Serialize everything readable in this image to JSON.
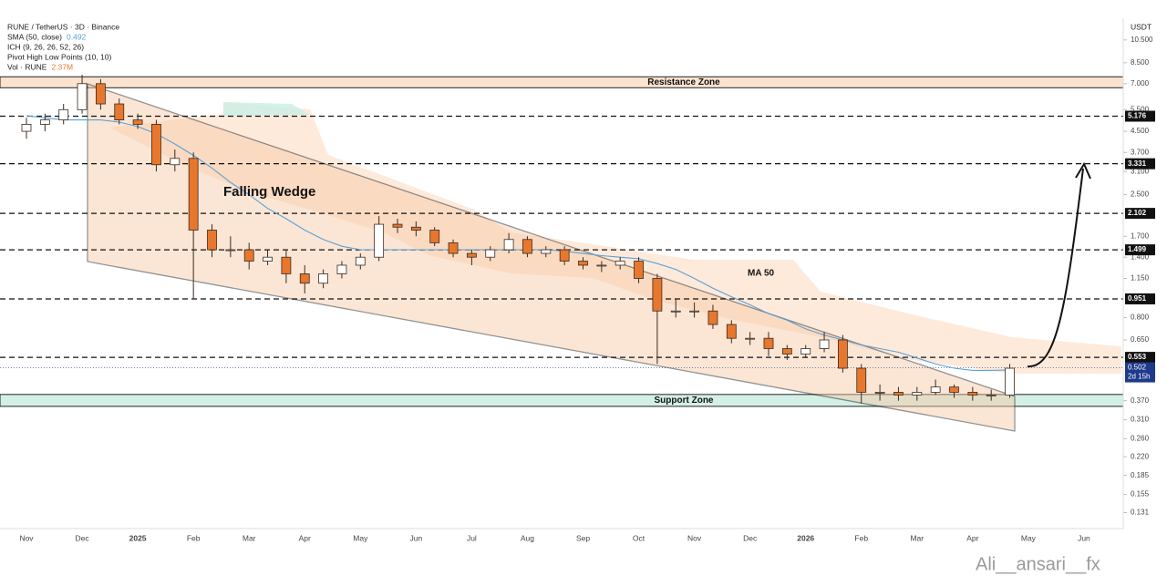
{
  "header": {
    "symbol": "RUNE / TetherUS · 3D · Binance",
    "legend": [
      {
        "label": "SMA (50, close)",
        "value": 0.492,
        "color": "#5aa0d8"
      },
      {
        "label": "ICH (9, 26, 26, 52, 26)"
      },
      {
        "label": "Pivot High Low Points (10, 10)"
      },
      {
        "label": "Vol · RUNE",
        "value_label": "2.37M",
        "color": "#e8772e"
      }
    ],
    "currency": "USDT",
    "watermark": "Ali__ansari__fx"
  },
  "chart_data": {
    "type": "candlestick",
    "categories": [
      "Nov",
      null,
      null,
      "Dec",
      null,
      null,
      "2025",
      null,
      null,
      "Feb",
      null,
      null,
      "Mar",
      null,
      null,
      "Apr",
      null,
      null,
      "May",
      null,
      null,
      "Jun",
      null,
      null,
      "Jul",
      null,
      null,
      "Aug",
      null,
      null,
      "Sep",
      null,
      null,
      "Oct",
      null,
      null,
      "Nov",
      null,
      null,
      "Dec",
      null,
      null,
      "2026",
      null,
      null,
      "Feb",
      null,
      null,
      "Mar",
      null,
      null,
      "Apr",
      null,
      null,
      "May",
      null,
      null,
      "Jun",
      null,
      null
    ],
    "series": [
      {
        "name": "RUNE",
        "up_color": "#ffffff",
        "down_color": "#e8772e",
        "outline": "#3a2a20",
        "open": [
          4.5,
          4.8,
          5.0,
          5.5,
          7.0,
          5.8,
          5.0,
          4.8,
          3.3,
          3.5,
          1.8,
          1.5,
          1.5,
          1.35,
          1.4,
          1.2,
          1.1,
          1.2,
          1.3,
          1.4,
          1.9,
          1.85,
          1.8,
          1.6,
          1.45,
          1.4,
          1.5,
          1.65,
          1.45,
          1.5,
          1.35,
          1.3,
          1.3,
          1.35,
          1.15,
          0.85,
          0.85,
          0.85,
          0.75,
          0.66,
          0.66,
          0.6,
          0.57,
          0.6,
          0.65,
          0.5,
          0.4,
          0.4,
          0.39,
          0.4,
          0.42,
          0.4,
          0.39,
          0.39,
          null,
          null,
          null,
          null,
          null,
          null
        ],
        "high": [
          5.1,
          5.3,
          5.8,
          7.6,
          7.3,
          6.1,
          5.3,
          5.0,
          3.8,
          3.7,
          1.9,
          1.7,
          1.6,
          1.5,
          1.5,
          1.3,
          1.25,
          1.35,
          1.45,
          2.05,
          2.0,
          1.95,
          1.85,
          1.65,
          1.5,
          1.55,
          1.75,
          1.7,
          1.55,
          1.55,
          1.4,
          1.35,
          1.4,
          1.4,
          1.2,
          0.95,
          0.92,
          0.9,
          0.78,
          0.7,
          0.7,
          0.62,
          0.62,
          0.7,
          0.68,
          0.52,
          0.43,
          0.42,
          0.42,
          0.45,
          0.43,
          0.42,
          0.41,
          0.52,
          null,
          null,
          null,
          null,
          null,
          null
        ],
        "low": [
          4.2,
          4.5,
          4.8,
          5.3,
          5.5,
          4.8,
          4.6,
          3.1,
          3.1,
          0.95,
          1.4,
          1.4,
          1.25,
          1.3,
          1.1,
          1.0,
          1.05,
          1.15,
          1.25,
          1.35,
          1.75,
          1.7,
          1.55,
          1.4,
          1.3,
          1.35,
          1.45,
          1.4,
          1.4,
          1.3,
          1.25,
          1.22,
          1.25,
          1.1,
          0.52,
          0.8,
          0.8,
          0.72,
          0.63,
          0.62,
          0.56,
          0.54,
          0.55,
          0.58,
          0.48,
          0.36,
          0.37,
          0.37,
          0.37,
          0.39,
          0.38,
          0.37,
          0.37,
          0.38,
          null,
          null,
          null,
          null,
          null,
          null
        ],
        "close": [
          4.8,
          5.0,
          5.5,
          7.0,
          5.8,
          5.0,
          4.8,
          3.3,
          3.5,
          1.8,
          1.5,
          1.5,
          1.35,
          1.4,
          1.2,
          1.1,
          1.2,
          1.3,
          1.4,
          1.9,
          1.85,
          1.8,
          1.6,
          1.45,
          1.4,
          1.5,
          1.65,
          1.45,
          1.5,
          1.35,
          1.3,
          1.3,
          1.35,
          1.15,
          0.85,
          0.85,
          0.85,
          0.75,
          0.66,
          0.66,
          0.6,
          0.57,
          0.6,
          0.65,
          0.5,
          0.4,
          0.4,
          0.39,
          0.4,
          0.42,
          0.4,
          0.39,
          0.39,
          0.5,
          null,
          null,
          null,
          null,
          null,
          null
        ]
      }
    ],
    "ma": {
      "label": "MA 50",
      "color": "#5aa0d8",
      "values": [
        5.2,
        5.1,
        5.0,
        5.0,
        5.0,
        4.9,
        4.7,
        4.4,
        4.0,
        3.6,
        3.2,
        2.8,
        2.5,
        2.2,
        2.0,
        1.8,
        1.65,
        1.55,
        1.5,
        1.5,
        1.5,
        1.5,
        1.5,
        1.5,
        1.5,
        1.5,
        1.5,
        1.5,
        1.5,
        1.48,
        1.45,
        1.42,
        1.4,
        1.38,
        1.32,
        1.25,
        1.15,
        1.05,
        0.97,
        0.9,
        0.83,
        0.78,
        0.72,
        0.68,
        0.65,
        0.62,
        0.6,
        0.58,
        0.55,
        0.52,
        0.5,
        0.49,
        0.49,
        0.492,
        null,
        null,
        null,
        null,
        null,
        null
      ]
    },
    "log_scale": true,
    "ylim": [
      0.113,
      11.8
    ],
    "yticks": [
      {
        "value": 10.5,
        "label": "10.500"
      },
      {
        "value": 8.5,
        "label": "8.500"
      },
      {
        "value": 7,
        "label": "7.000"
      },
      {
        "value": 5.5,
        "label": "5.500"
      },
      {
        "value": 4.5,
        "label": "4.500"
      },
      {
        "value": 3.7,
        "label": "3.700"
      },
      {
        "value": 3.1,
        "label": "3.100"
      },
      {
        "value": 2.5,
        "label": "2.500"
      },
      {
        "value": 1.7,
        "label": "1.700"
      },
      {
        "value": 1.4,
        "label": "1.400"
      },
      {
        "value": 1.15,
        "label": "1.150"
      },
      {
        "value": 0.8,
        "label": "0.800"
      },
      {
        "value": 0.65,
        "label": "0.650"
      },
      {
        "value": 0.37,
        "label": "0.370"
      },
      {
        "value": 0.31,
        "label": "0.310"
      },
      {
        "value": 0.26,
        "label": "0.260"
      },
      {
        "value": 0.22,
        "label": "0.220"
      },
      {
        "value": 0.185,
        "label": "0.185"
      },
      {
        "value": 0.155,
        "label": "0.155"
      },
      {
        "value": 0.131,
        "label": "0.131"
      }
    ],
    "levels": [
      5.176,
      3.331,
      2.102,
      1.499,
      0.951,
      0.553
    ],
    "last_price": 0.502,
    "countdown": "2d 15h",
    "zones": [
      {
        "label": "Resistance Zone",
        "range": [
          6.74,
          7.46
        ],
        "color": "#fbe3d0"
      },
      {
        "label": "Support Zone",
        "range": [
          0.351,
          0.392
        ],
        "color": "#d4efe6"
      }
    ],
    "annotations": [
      "Falling Wedge"
    ]
  }
}
